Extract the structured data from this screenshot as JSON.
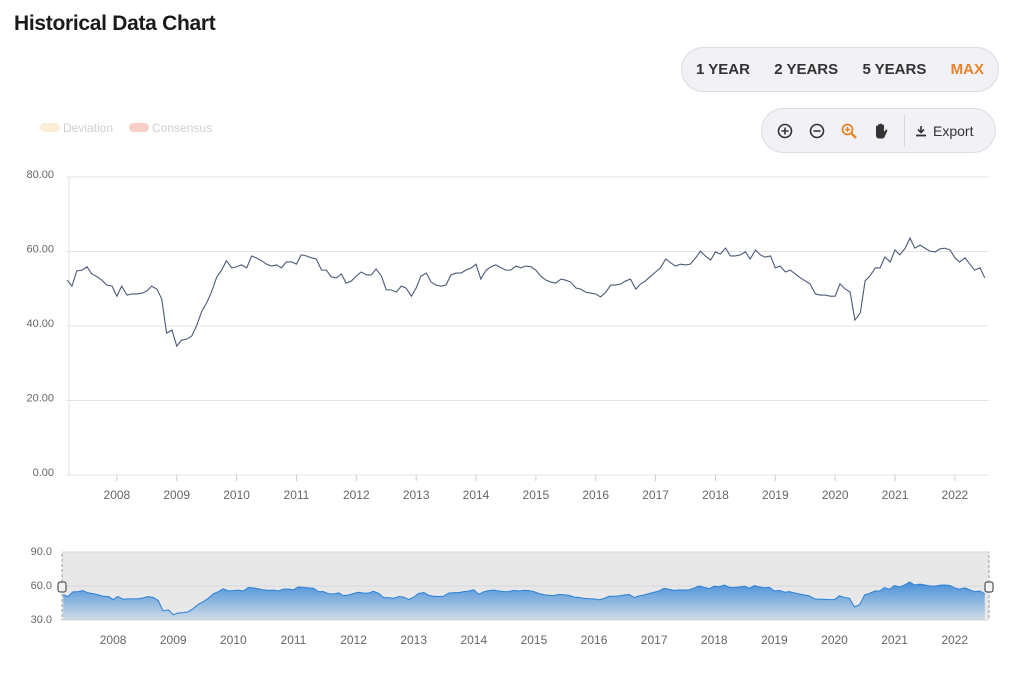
{
  "title": "Historical Data Chart",
  "range_buttons": [
    "1 YEAR",
    "2 YEARS",
    "5 YEARS",
    "MAX"
  ],
  "active_range": 3,
  "active_color": "#e8832a",
  "toolbar": {
    "export": "Export"
  },
  "chart_data": {
    "type": "line",
    "x": [
      2007.17,
      2007.25,
      2007.33,
      2007.42,
      2007.5,
      2007.58,
      2007.67,
      2007.75,
      2007.83,
      2007.92,
      2008,
      2008.08,
      2008.17,
      2008.25,
      2008.33,
      2008.42,
      2008.5,
      2008.58,
      2008.67,
      2008.75,
      2008.83,
      2008.92,
      2009,
      2009.08,
      2009.17,
      2009.25,
      2009.33,
      2009.42,
      2009.5,
      2009.58,
      2009.67,
      2009.75,
      2009.83,
      2009.92,
      2010,
      2010.08,
      2010.17,
      2010.25,
      2010.33,
      2010.42,
      2010.5,
      2010.58,
      2010.67,
      2010.75,
      2010.83,
      2010.92,
      2011,
      2011.08,
      2011.17,
      2011.25,
      2011.33,
      2011.42,
      2011.5,
      2011.58,
      2011.67,
      2011.75,
      2011.83,
      2011.92,
      2012,
      2012.08,
      2012.17,
      2012.25,
      2012.33,
      2012.42,
      2012.5,
      2012.58,
      2012.67,
      2012.75,
      2012.83,
      2012.92,
      2013,
      2013.08,
      2013.17,
      2013.25,
      2013.33,
      2013.42,
      2013.5,
      2013.58,
      2013.67,
      2013.75,
      2013.83,
      2013.92,
      2014,
      2014.08,
      2014.17,
      2014.25,
      2014.33,
      2014.42,
      2014.5,
      2014.58,
      2014.67,
      2014.75,
      2014.83,
      2014.92,
      2015,
      2015.08,
      2015.17,
      2015.25,
      2015.33,
      2015.42,
      2015.5,
      2015.58,
      2015.67,
      2015.75,
      2015.83,
      2015.92,
      2016,
      2016.08,
      2016.17,
      2016.25,
      2016.33,
      2016.42,
      2016.5,
      2016.58,
      2016.67,
      2016.75,
      2016.83,
      2016.92,
      2017,
      2017.08,
      2017.17,
      2017.25,
      2017.33,
      2017.42,
      2017.5,
      2017.58,
      2017.67,
      2017.75,
      2017.83,
      2017.92,
      2018,
      2018.08,
      2018.17,
      2018.25,
      2018.33,
      2018.42,
      2018.5,
      2018.58,
      2018.67,
      2018.75,
      2018.83,
      2018.92,
      2019,
      2019.08,
      2019.17,
      2019.25,
      2019.33,
      2019.42,
      2019.5,
      2019.58,
      2019.67,
      2019.75,
      2019.83,
      2019.92,
      2020,
      2020.08,
      2020.17,
      2020.25,
      2020.33,
      2020.42,
      2020.5,
      2020.58,
      2020.67,
      2020.75,
      2020.83,
      2020.92,
      2021,
      2021.08,
      2021.17,
      2021.25,
      2021.33,
      2021.42,
      2021.5,
      2021.58,
      2021.67,
      2021.75,
      2021.83,
      2021.92,
      2022,
      2022.08,
      2022.17,
      2022.25,
      2022.33,
      2022.42,
      2022.5
    ],
    "series": [
      {
        "color": "#4a5a78",
        "values": [
          52.3,
          50.7,
          54.8,
          55,
          55.9,
          54,
          53.2,
          52.3,
          51,
          50.7,
          48,
          50.7,
          48.3,
          48.6,
          48.6,
          48.8,
          49.4,
          50.7,
          49.9,
          47.2,
          38.1,
          38.9,
          34.6,
          36.2,
          36.5,
          37.3,
          40,
          44,
          46.2,
          49.1,
          53.2,
          55,
          57.5,
          55.6,
          55.9,
          56.4,
          55.6,
          58.8,
          58.3,
          57.5,
          56.6,
          56.1,
          56.4,
          55.6,
          57.2,
          57.2,
          56.6,
          59.1,
          58.8,
          58.3,
          58,
          55,
          55,
          53.2,
          52.9,
          54,
          51.5,
          52.1,
          53.4,
          54.5,
          53.7,
          53.7,
          55.3,
          53.4,
          49.7,
          49.7,
          49.1,
          50.7,
          50.2,
          48,
          50.2,
          53.4,
          54.2,
          51.8,
          51,
          50.7,
          51,
          53.7,
          54.2,
          54.2,
          55,
          55.6,
          56.6,
          52.6,
          55,
          55.9,
          56.4,
          55.6,
          55,
          55,
          56.1,
          55.6,
          56.1,
          55.9,
          55,
          53.4,
          52.3,
          51.8,
          51.5,
          52.6,
          52.3,
          51.8,
          50.2,
          49.9,
          49.1,
          48.8,
          48.6,
          47.8,
          49.1,
          51,
          51,
          51.3,
          52.1,
          52.6,
          49.9,
          51.3,
          52.1,
          53.4,
          54.5,
          55.6,
          58,
          57,
          56.1,
          56.6,
          56.4,
          56.6,
          58.3,
          60.1,
          58.8,
          57.7,
          59.9,
          59.3,
          60.9,
          58.8,
          58.8,
          59.1,
          59.9,
          58,
          60.4,
          59.1,
          58.5,
          58.8,
          55.6,
          56.1,
          54.5,
          55,
          54,
          52.9,
          52.1,
          51.3,
          48.6,
          48.3,
          48.3,
          48,
          48,
          51.3,
          49.9,
          49.1,
          41.6,
          43.5,
          52.1,
          53.4,
          55.6,
          55.6,
          58.5,
          57.2,
          60.4,
          59.1,
          60.9,
          63.6,
          60.9,
          61.7,
          60.9,
          60.1,
          59.9,
          60.7,
          60.9,
          60.4,
          58.3,
          57.2,
          58.3,
          56.6,
          55,
          55.6,
          52.9
        ]
      }
    ],
    "legend_items": [
      {
        "name": "Deviation",
        "color": "#fbeed6"
      },
      {
        "name": "Consensus",
        "color": "#f7cfc6"
      }
    ],
    "xlim": [
      2007.15,
      2022.57
    ],
    "xticks": [
      2008,
      2009,
      2010,
      2011,
      2012,
      2013,
      2014,
      2015,
      2016,
      2017,
      2018,
      2019,
      2020,
      2021,
      2022
    ],
    "ylim": [
      0,
      80
    ],
    "yticks": [
      {
        "value": 0,
        "label": "0.00"
      },
      {
        "value": 20,
        "label": "20.00"
      },
      {
        "value": 40,
        "label": "40.00"
      },
      {
        "value": 60,
        "label": "60.00"
      },
      {
        "value": 80,
        "label": "80.00"
      }
    ],
    "grid": true,
    "navigator": {
      "ylim": [
        30,
        90
      ],
      "yticks": [
        {
          "value": 30,
          "label": "30.0"
        },
        {
          "value": 60,
          "label": "60.0"
        },
        {
          "value": 90,
          "label": "90.0"
        }
      ],
      "color": "#2a80d6"
    }
  }
}
